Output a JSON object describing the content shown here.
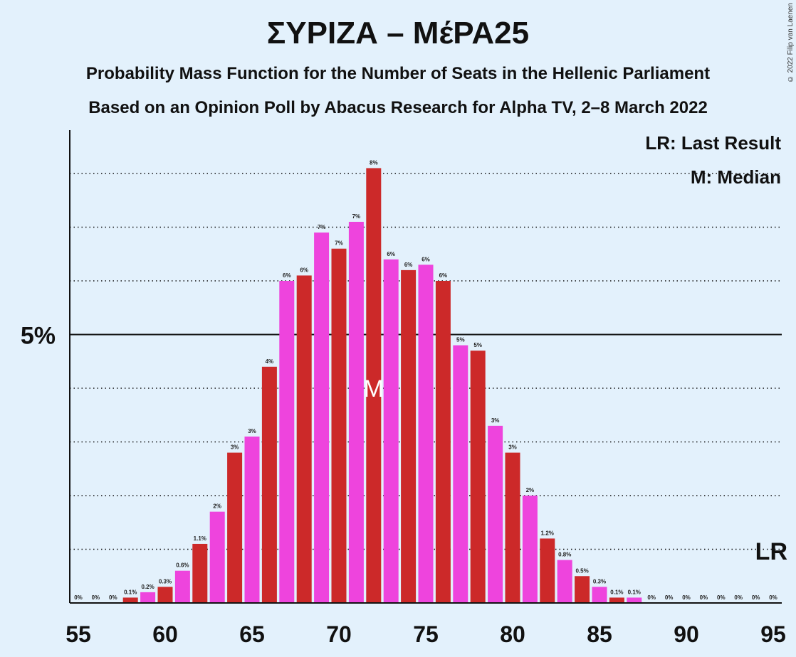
{
  "header": {
    "title": "ΣΥΡΙΖΑ – ΜέΡΑ25",
    "subtitle1": "Probability Mass Function for the Number of Seats in the Hellenic Parliament",
    "subtitle2": "Based on an Opinion Poll by Abacus Research for Alpha TV, 2–8 March 2022",
    "copyright": "© 2022 Filip van Laenen"
  },
  "legend": {
    "lr": "LR: Last Result",
    "median": "M: Median"
  },
  "markers": {
    "median_label": "M",
    "median_seat": 72,
    "lr_label": "LR"
  },
  "colors": {
    "background": "#e3f1fc",
    "bar_a": "#cc2929",
    "bar_b": "#ee44dd"
  },
  "chart_data": {
    "type": "bar",
    "x": [
      55,
      56,
      57,
      58,
      59,
      60,
      61,
      62,
      63,
      64,
      65,
      66,
      67,
      68,
      69,
      70,
      71,
      72,
      73,
      74,
      75,
      76,
      77,
      78,
      79,
      80,
      81,
      82,
      83,
      84,
      85,
      86,
      87,
      88,
      89,
      90,
      91,
      92,
      93,
      94,
      95
    ],
    "values": [
      0,
      0,
      0,
      0.1,
      0.2,
      0.3,
      0.6,
      1.1,
      1.7,
      2.8,
      3.1,
      4.4,
      6.0,
      6.1,
      6.9,
      6.6,
      7.1,
      8.1,
      6.4,
      6.2,
      6.3,
      6.0,
      4.8,
      4.7,
      3.3,
      2.8,
      2.0,
      1.2,
      0.8,
      0.5,
      0.3,
      0.1,
      0.1,
      0,
      0,
      0,
      0,
      0,
      0,
      0,
      0
    ],
    "data_labels": [
      "0%",
      "0%",
      "0%",
      "0.1%",
      "0.2%",
      "0.3%",
      "0.6%",
      "1.1%",
      "2%",
      "3%",
      "3%",
      "4%",
      "6%",
      "6%",
      "7%",
      "7%",
      "7%",
      "8%",
      "6%",
      "6%",
      "6%",
      "6%",
      "5%",
      "5%",
      "3%",
      "3%",
      "2%",
      "1.2%",
      "0.8%",
      "0.5%",
      "0.3%",
      "0.1%",
      "0.1%",
      "0%",
      "0%",
      "0%",
      "0%",
      "0%",
      "0%",
      "0%",
      "0%"
    ],
    "x_ticks": [
      "55",
      "60",
      "65",
      "70",
      "75",
      "80",
      "85",
      "90",
      "95"
    ],
    "y_tick_label": "5%",
    "ylim": [
      0,
      8.8
    ],
    "x_range": [
      55,
      95
    ],
    "grid": "dotted horizontal every 1%, solid at 5%"
  }
}
